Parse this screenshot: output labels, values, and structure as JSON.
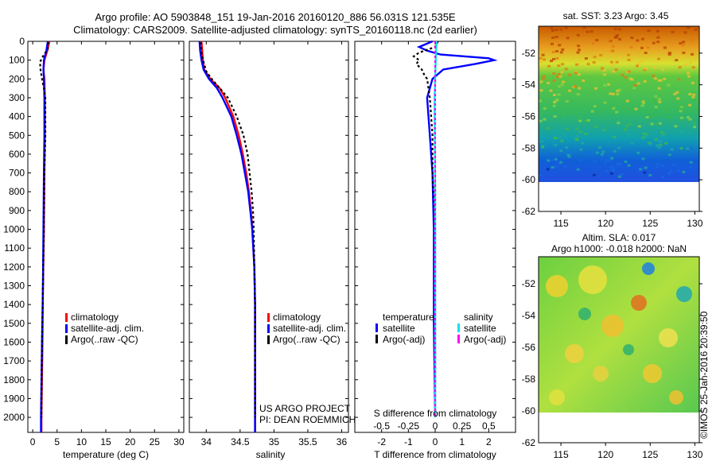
{
  "header": {
    "title_line1": "Argo profile: AO 5903848_151 19-Jan-2016 20160120_886 56.031S 121.535E",
    "title_line2": "Climatology: CARS2009. Satellite-adjusted climatology: synTS_20160118.nc (2d earlier)"
  },
  "colors": {
    "climatology": "#ff0000",
    "satellite_adj": "#0000ff",
    "argo": "#000000",
    "salinity_satellite": "#00e5ee",
    "salinity_argo": "#ff00ff"
  },
  "chart_data": [
    {
      "type": "line",
      "id": "temperature",
      "xlabel": "temperature (deg C)",
      "ylabel": "",
      "xlim": [
        -1,
        31
      ],
      "ylim": [
        2080,
        0
      ],
      "xticks": [
        0,
        5,
        10,
        15,
        20,
        25,
        30
      ],
      "yticks": [
        0,
        100,
        200,
        300,
        400,
        500,
        600,
        700,
        800,
        900,
        1000,
        1100,
        1200,
        1300,
        1400,
        1500,
        1600,
        1700,
        1800,
        1900,
        2000
      ],
      "legend": [
        "climatology",
        "satellite-adj. clim.",
        "Argo(..raw -QC)"
      ],
      "series": [
        {
          "name": "climatology",
          "depth": [
            0,
            50,
            100,
            150,
            200,
            300,
            400,
            500,
            700,
            1000,
            1300,
            1600,
            2000,
            2080
          ],
          "values": [
            3.4,
            3.0,
            2.4,
            2.2,
            2.4,
            2.5,
            2.5,
            2.5,
            2.4,
            2.3,
            2.1,
            2.0,
            1.8,
            1.8
          ]
        },
        {
          "name": "satellite-adj. clim.",
          "depth": [
            0,
            50,
            100,
            150,
            200,
            300,
            400,
            500,
            700,
            1000,
            1300,
            1600,
            2000,
            2080
          ],
          "values": [
            3.1,
            2.8,
            2.3,
            2.2,
            2.3,
            2.4,
            2.4,
            2.4,
            2.3,
            2.2,
            2.1,
            1.9,
            1.7,
            1.7
          ]
        },
        {
          "name": "Argo(..raw -QC)",
          "depth": [
            5,
            40,
            80,
            110,
            150,
            200,
            250,
            300,
            400,
            500,
            700,
            1000,
            1300,
            1600,
            1900,
            2000
          ],
          "values": [
            3.2,
            3.1,
            2.1,
            1.5,
            1.6,
            1.9,
            2.3,
            2.6,
            2.6,
            2.6,
            2.4,
            2.3,
            2.1,
            1.9,
            1.8,
            1.8
          ]
        }
      ]
    },
    {
      "type": "line",
      "id": "salinity",
      "xlabel": "salinity",
      "ylim": [
        2080,
        0
      ],
      "xlim": [
        33.75,
        36.1
      ],
      "xticks": [
        34,
        34.5,
        35,
        35.5,
        36
      ],
      "legend": [
        "climatology",
        "satellite-adj. clim.",
        "Argo(..raw -QC)"
      ],
      "series": [
        {
          "name": "climatology",
          "depth": [
            0,
            50,
            100,
            150,
            200,
            250,
            300,
            400,
            500,
            600,
            700,
            800,
            900,
            1000,
            1200,
            1400,
            1600,
            1800,
            2000,
            2080
          ],
          "values": [
            33.93,
            33.94,
            33.95,
            33.97,
            34.06,
            34.2,
            34.28,
            34.4,
            34.48,
            34.54,
            34.59,
            34.63,
            34.66,
            34.68,
            34.71,
            34.72,
            34.72,
            34.72,
            34.72,
            34.72
          ]
        },
        {
          "name": "satellite-adj. clim.",
          "depth": [
            0,
            50,
            100,
            150,
            200,
            250,
            300,
            400,
            500,
            600,
            700,
            800,
            900,
            1000,
            1200,
            1400,
            1600,
            1800,
            2000,
            2080
          ],
          "values": [
            33.9,
            33.91,
            33.93,
            33.96,
            34.04,
            34.16,
            34.24,
            34.37,
            34.45,
            34.52,
            34.57,
            34.62,
            34.65,
            34.68,
            34.71,
            34.72,
            34.72,
            34.72,
            34.72,
            34.72
          ]
        },
        {
          "name": "Argo(..raw -QC)",
          "depth": [
            5,
            60,
            110,
            160,
            200,
            300,
            400,
            500,
            600,
            700,
            800,
            900,
            1000,
            1200,
            1400,
            1600,
            1800,
            2000
          ],
          "values": [
            33.92,
            33.93,
            33.96,
            34.0,
            34.08,
            34.32,
            34.45,
            34.55,
            34.61,
            34.64,
            34.67,
            34.69,
            34.7,
            34.71,
            34.72,
            34.72,
            34.72,
            34.72
          ]
        }
      ],
      "annotation": [
        "US ARGO PROJECT",
        "PI: DEAN ROEMMICH"
      ]
    },
    {
      "type": "line",
      "id": "differences",
      "xlabel": "T difference from climatology",
      "xlabel_top": "S difference from climatology",
      "ylim": [
        2080,
        0
      ],
      "xlim": [
        -3,
        3
      ],
      "xticks": [
        -2,
        -1,
        0,
        1,
        2
      ],
      "xticks_salinity": [
        -0.5,
        -0.25,
        0,
        0.25,
        0.5
      ],
      "legend_temperature_title": "temperature",
      "legend_salinity_title": "salinity",
      "legend_satellite": "satellite",
      "legend_argo": "Argo(-adj)",
      "series": [
        {
          "name": "temperature satellite",
          "depth": [
            0,
            30,
            50,
            70,
            90,
            100,
            120,
            150,
            200,
            300,
            500,
            700,
            1000,
            1500,
            2000
          ],
          "values": [
            -0.1,
            -0.6,
            -0.3,
            0.2,
            2.0,
            2.2,
            1.5,
            0.3,
            -0.1,
            -0.3,
            -0.2,
            -0.1,
            -0.05,
            -0.05,
            0.0
          ]
        },
        {
          "name": "temperature Argo(-adj)",
          "depth": [
            0,
            30,
            60,
            80,
            100,
            120,
            150,
            180,
            200,
            300,
            500,
            700,
            1000,
            1500,
            2000
          ],
          "values": [
            0.1,
            0.0,
            -0.6,
            -0.8,
            -0.6,
            -0.7,
            -0.5,
            -0.4,
            -0.3,
            -0.2,
            -0.1,
            -0.1,
            0.0,
            0.0,
            0.0
          ]
        },
        {
          "name": "salinity satellite",
          "depth": [
            0,
            100,
            200,
            300,
            400,
            600,
            800,
            1000,
            1500,
            2000
          ],
          "values": [
            0.05,
            0.02,
            0.0,
            -0.02,
            -0.02,
            -0.01,
            0.0,
            0.0,
            0.0,
            0.0
          ]
        },
        {
          "name": "salinity Argo(-adj)",
          "depth": [
            0,
            200,
            500,
            1000,
            2000
          ],
          "values": [
            0.0,
            0.0,
            0.0,
            0.0,
            0.0
          ]
        }
      ]
    },
    {
      "type": "heatmap",
      "id": "sst-map",
      "title": "sat. SST: 3.23 Argo: 3.45",
      "xlim": [
        112.5,
        130.5
      ],
      "ylim": [
        -62,
        -50.3
      ],
      "xticks": [
        115,
        120,
        125,
        130
      ],
      "yticks": [
        -52,
        -54,
        -56,
        -58,
        -60,
        -62
      ]
    },
    {
      "type": "heatmap",
      "id": "sla-map",
      "title_line1": "Altim. SLA: 0.017",
      "title_line2": "Argo h1000: -0.018 h2000: NaN",
      "xlim": [
        112.5,
        130.5
      ],
      "ylim": [
        -62,
        -50.3
      ],
      "xticks": [
        115,
        120,
        125,
        130
      ],
      "yticks": [
        -52,
        -54,
        -56,
        -58,
        -60,
        -62
      ]
    }
  ],
  "watermark": "©IMOS 25-Jan-2016 20:39:50"
}
